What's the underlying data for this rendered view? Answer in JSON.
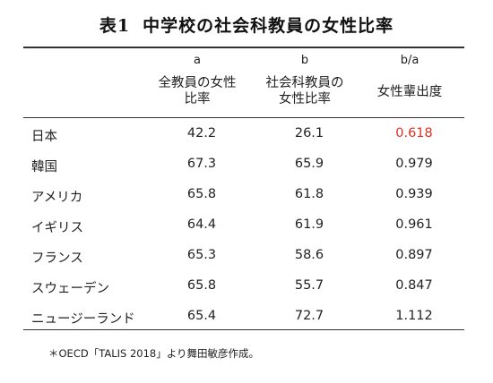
{
  "title": {
    "number": "表1",
    "text": "中学校の社会科教員の女性比率"
  },
  "columns": [
    {
      "letter": "a",
      "header": [
        "全教員の女性",
        "比率"
      ]
    },
    {
      "letter": "b",
      "header": [
        "社会科教員の",
        "女性比率"
      ]
    },
    {
      "letter": "b/a",
      "header": [
        "女性輩出度"
      ]
    }
  ],
  "rows": [
    {
      "country": "日本",
      "a": "42.2",
      "b": "26.1",
      "ratio": "0.618"
    },
    {
      "country": "韓国",
      "a": "67.3",
      "b": "65.9",
      "ratio": "0.979"
    },
    {
      "country": "アメリカ",
      "a": "65.8",
      "b": "61.8",
      "ratio": "0.939"
    },
    {
      "country": "イギリス",
      "a": "64.4",
      "b": "61.9",
      "ratio": "0.961"
    },
    {
      "country": "フランス",
      "a": "65.3",
      "b": "58.6",
      "ratio": "0.897"
    },
    {
      "country": "スウェーデン",
      "a": "65.8",
      "b": "55.7",
      "ratio": "0.847"
    },
    {
      "country": "ニュージーランド",
      "a": "65.4",
      "b": "72.7",
      "ratio": "1.112"
    }
  ],
  "highlight_color": "#e0301e",
  "note": "＊OECD「TALIS 2018」より舞田敏彦作成。"
}
